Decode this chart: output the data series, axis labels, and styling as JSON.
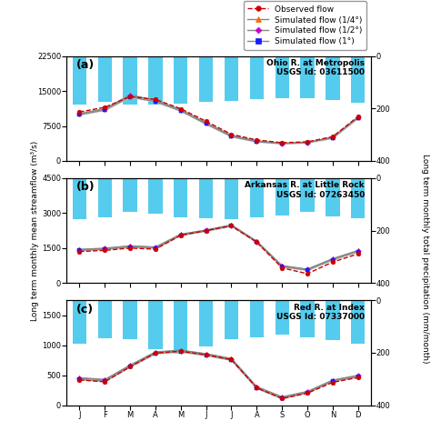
{
  "months": [
    1,
    2,
    3,
    4,
    5,
    6,
    7,
    8,
    9,
    10,
    11,
    12
  ],
  "month_labels": [
    "J",
    "F",
    "M",
    "A",
    "M",
    "J",
    "J",
    "A",
    "S",
    "O",
    "N",
    "D"
  ],
  "panel_a": {
    "label": "(a)",
    "title_line1": "Ohio R. at Metropolis",
    "title_line2": "USGS Id: 03611500",
    "ylim_left": [
      0,
      22500
    ],
    "ylim_right": [
      400,
      0
    ],
    "yticks_left": [
      0,
      7500,
      15000,
      22500
    ],
    "yticks_right": [
      400,
      200,
      0
    ],
    "precip_mm": [
      185,
      175,
      185,
      185,
      180,
      175,
      170,
      165,
      160,
      160,
      168,
      178
    ],
    "obs": [
      10500,
      11500,
      13800,
      13200,
      11200,
      8500,
      5700,
      4500,
      3900,
      4100,
      5200,
      9500
    ],
    "sim_025": [
      10200,
      11200,
      14200,
      13000,
      11000,
      8200,
      5500,
      4300,
      3800,
      4000,
      5100,
      9400
    ],
    "sim_05": [
      10100,
      11100,
      14000,
      12900,
      10900,
      8100,
      5400,
      4200,
      3750,
      3950,
      5000,
      9350
    ],
    "sim_1": [
      9900,
      10900,
      13700,
      12700,
      10700,
      7900,
      5200,
      4100,
      3700,
      3900,
      4900,
      9200
    ]
  },
  "panel_b": {
    "label": "(b)",
    "title_line1": "Arkansas R. at Little Rock",
    "title_line2": "USGS Id: 07263450",
    "ylim_left": [
      0,
      4500
    ],
    "ylim_right": [
      400,
      0
    ],
    "yticks_left": [
      0,
      1500,
      3000,
      4500
    ],
    "yticks_right": [
      400,
      200,
      0
    ],
    "precip_mm": [
      155,
      148,
      130,
      135,
      148,
      152,
      155,
      150,
      143,
      130,
      145,
      152
    ],
    "obs": [
      1350,
      1400,
      1500,
      1450,
      2050,
      2250,
      2450,
      1750,
      650,
      400,
      900,
      1250
    ],
    "sim_025": [
      1450,
      1500,
      1600,
      1550,
      2100,
      2280,
      2500,
      1800,
      750,
      600,
      1050,
      1400
    ],
    "sim_05": [
      1430,
      1480,
      1580,
      1530,
      2080,
      2260,
      2480,
      1780,
      730,
      580,
      1030,
      1380
    ],
    "sim_1": [
      1400,
      1450,
      1550,
      1500,
      2050,
      2230,
      2450,
      1750,
      700,
      550,
      1000,
      1350
    ]
  },
  "panel_c": {
    "label": "(c)",
    "title_line1": "Red R. at Index",
    "title_line2": "USGS Id: 07337000",
    "ylim_left": [
      0,
      1750
    ],
    "ylim_right": [
      400,
      0
    ],
    "yticks_left": [
      0,
      500,
      1000,
      1500
    ],
    "yticks_right": [
      400,
      200,
      0
    ],
    "precip_mm": [
      165,
      145,
      148,
      185,
      205,
      175,
      150,
      140,
      132,
      140,
      152,
      165
    ],
    "obs": [
      420,
      390,
      640,
      870,
      900,
      840,
      760,
      290,
      110,
      200,
      380,
      460
    ],
    "sim_025": [
      460,
      430,
      670,
      890,
      920,
      860,
      780,
      310,
      140,
      230,
      420,
      500
    ],
    "sim_05": [
      450,
      420,
      660,
      880,
      910,
      850,
      770,
      300,
      130,
      220,
      410,
      490
    ],
    "sim_1": [
      430,
      400,
      640,
      860,
      890,
      830,
      750,
      280,
      110,
      210,
      400,
      475
    ]
  },
  "colors": {
    "obs": "#cc0000",
    "sim_025": "#ff6600",
    "sim_05": "#cc00cc",
    "sim_1": "#1a1aff",
    "bar": "#55ccee"
  },
  "legend": {
    "obs_label": "Observed flow",
    "sim025_label": "Simulated flow (1/4°)",
    "sim05_label": "Simulated flow (1/2°)",
    "sim1_label": "Simulated flow (1°)"
  },
  "left_ylabel": "Long term monthly mean streamflow (m³/s)",
  "right_ylabel": "Long term monthly total precipitation (mm/month)"
}
